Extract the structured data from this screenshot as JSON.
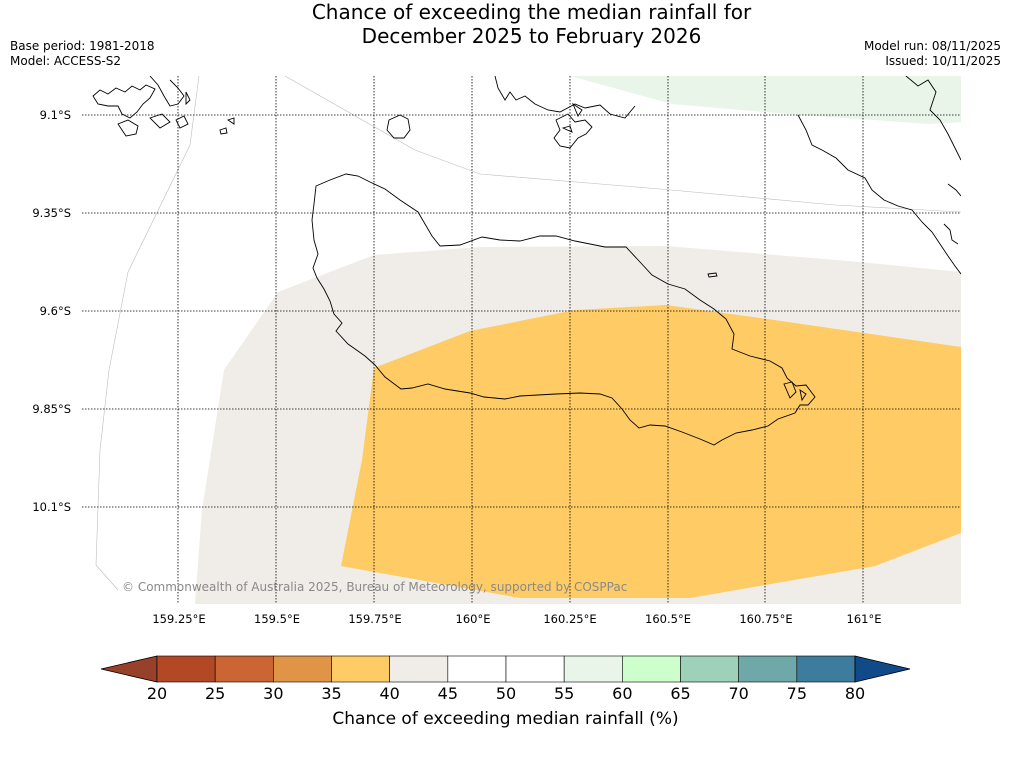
{
  "title": {
    "line1": "Chance of exceeding the median rainfall for",
    "line2": "December 2025 to February 2026"
  },
  "meta": {
    "base_period": "Base period: 1981-2018",
    "model": "Model: ACCESS-S2",
    "model_run": "Model run: 08/11/2025",
    "issued": "Issued: 10/11/2025"
  },
  "map": {
    "latitudes": [
      "9.1°S",
      "9.35°S",
      "9.6°S",
      "9.85°S",
      "10.1°S"
    ],
    "longitudes": [
      "159.25°E",
      "159.5°E",
      "159.75°E",
      "160°E",
      "160.25°E",
      "160.5°E",
      "160.75°E",
      "161°E"
    ],
    "copyright": "© Commonwealth of Australia 2025, Bureau of Meteorology, supported by COSPPac",
    "region_colors": {
      "40_45": "#f0ece7",
      "35_40": "#fecb65",
      "55_60": "#e8f5e8"
    }
  },
  "colorbar": {
    "ticks": [
      "20",
      "25",
      "30",
      "35",
      "40",
      "45",
      "50",
      "55",
      "60",
      "65",
      "70",
      "75",
      "80"
    ],
    "colors": [
      "#b34825",
      "#cc6534",
      "#e09446",
      "#fecb65",
      "#f0ece7",
      "#ffffff",
      "#ffffff",
      "#e8f5e8",
      "#ccffcc",
      "#9ed1ba",
      "#6ea8a8",
      "#3d7c9d"
    ],
    "under_color": "#97402a",
    "over_color": "#114a89",
    "label": "Chance of exceeding median rainfall (%)"
  }
}
